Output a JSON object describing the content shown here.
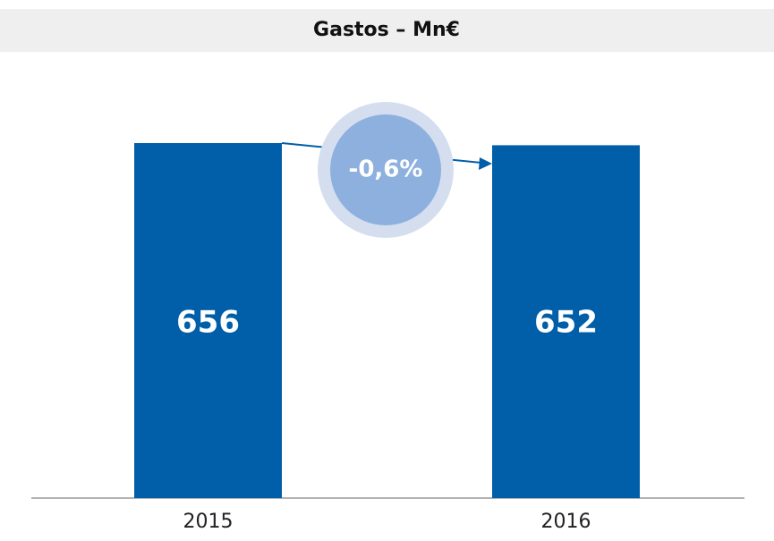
{
  "chart_data": {
    "type": "bar",
    "title": "Gastos – Mn€",
    "categories": [
      "2015",
      "2016"
    ],
    "values": [
      656,
      652
    ],
    "color": "#005fa8",
    "annotation": "-0,6%"
  }
}
